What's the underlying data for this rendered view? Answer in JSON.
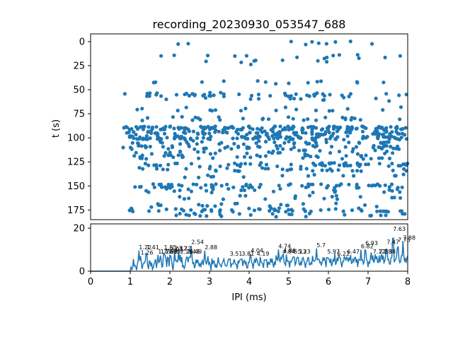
{
  "chart_data": [
    {
      "type": "scatter",
      "title": "recording_20230930_053547_688",
      "xlabel": "",
      "ylabel": "t (s)",
      "xlim": [
        0,
        8
      ],
      "ylim": [
        185,
        -8
      ],
      "y_inverted": true,
      "yticks": [
        0,
        25,
        50,
        75,
        100,
        125,
        150,
        175
      ],
      "grid": false,
      "color": "#1f77b4",
      "bands": [
        {
          "t": 1,
          "count": 10,
          "x_from": 1.0,
          "x_to": 8.0
        },
        {
          "t": 15,
          "count": 10,
          "x_from": 1.0,
          "x_to": 8.0
        },
        {
          "t": 18,
          "count": 6,
          "x_from": 1.2,
          "x_to": 8.0
        },
        {
          "t": 22,
          "count": 6,
          "x_from": 1.2,
          "x_to": 8.0
        },
        {
          "t": 42,
          "count": 14,
          "x_from": 1.5,
          "x_to": 8.0
        },
        {
          "t": 55,
          "count": 48,
          "x_from": 0.8,
          "x_to": 8.0
        },
        {
          "t": 60,
          "count": 12,
          "x_from": 1.0,
          "x_to": 8.0
        },
        {
          "t": 70,
          "count": 18,
          "x_from": 1.0,
          "x_to": 8.0
        },
        {
          "t": 80,
          "count": 28,
          "x_from": 1.0,
          "x_to": 8.0
        },
        {
          "t": 90,
          "count": 130,
          "x_from": 0.8,
          "x_to": 8.0
        },
        {
          "t": 95,
          "count": 90,
          "x_from": 0.9,
          "x_to": 8.0
        },
        {
          "t": 100,
          "count": 110,
          "x_from": 0.9,
          "x_to": 8.0
        },
        {
          "t": 105,
          "count": 40,
          "x_from": 1.0,
          "x_to": 8.0
        },
        {
          "t": 110,
          "count": 55,
          "x_from": 0.8,
          "x_to": 8.0
        },
        {
          "t": 115,
          "count": 30,
          "x_from": 1.0,
          "x_to": 8.0
        },
        {
          "t": 120,
          "count": 40,
          "x_from": 1.0,
          "x_to": 8.0
        },
        {
          "t": 128,
          "count": 60,
          "x_from": 0.8,
          "x_to": 8.0
        },
        {
          "t": 133,
          "count": 35,
          "x_from": 1.2,
          "x_to": 8.0
        },
        {
          "t": 140,
          "count": 14,
          "x_from": 1.2,
          "x_to": 8.0
        },
        {
          "t": 150,
          "count": 70,
          "x_from": 0.8,
          "x_to": 8.0
        },
        {
          "t": 155,
          "count": 25,
          "x_from": 1.2,
          "x_to": 8.0
        },
        {
          "t": 162,
          "count": 18,
          "x_from": 1.5,
          "x_to": 8.0
        },
        {
          "t": 170,
          "count": 20,
          "x_from": 1.2,
          "x_to": 8.0
        },
        {
          "t": 175,
          "count": 55,
          "x_from": 0.9,
          "x_to": 8.0
        },
        {
          "t": 180,
          "count": 25,
          "x_from": 2.0,
          "x_to": 8.0
        }
      ]
    },
    {
      "type": "line",
      "title": "",
      "xlabel": "IPI (ms)",
      "ylabel": "",
      "xlim": [
        0,
        8
      ],
      "ylim": [
        0,
        22
      ],
      "xticks": [
        0,
        1,
        2,
        3,
        4,
        5,
        6,
        7,
        8
      ],
      "yticks": [
        0,
        20
      ],
      "grid": false,
      "color": "#1f77b4",
      "histogram": {
        "start": 0,
        "end": 8,
        "step": 0.02,
        "onset": 1.0
      },
      "peaks": [
        {
          "x": 1.22,
          "y": 9.5,
          "label": "1.22"
        },
        {
          "x": 1.26,
          "y": 7.0,
          "label": "1.26"
        },
        {
          "x": 1.41,
          "y": 9.5,
          "label": "1.41"
        },
        {
          "x": 1.7,
          "y": 7.5,
          "label": "1.7"
        },
        {
          "x": 1.76,
          "y": 7.5,
          "label": "1.76"
        },
        {
          "x": 1.85,
          "y": 9.5,
          "label": "1.85"
        },
        {
          "x": 1.88,
          "y": 7.5,
          "label": "1.88"
        },
        {
          "x": 1.95,
          "y": 7.5,
          "label": "1.95"
        },
        {
          "x": 2.01,
          "y": 8.5,
          "label": "2.01"
        },
        {
          "x": 2.12,
          "y": 9.0,
          "label": "2.12"
        },
        {
          "x": 2.22,
          "y": 9.0,
          "label": "2.22"
        },
        {
          "x": 2.26,
          "y": 7.5,
          "label": "2.26"
        },
        {
          "x": 2.43,
          "y": 7.5,
          "label": "2.43"
        },
        {
          "x": 2.49,
          "y": 7.5,
          "label": "2.49"
        },
        {
          "x": 2.54,
          "y": 12.0,
          "label": "2.54"
        },
        {
          "x": 2.88,
          "y": 9.5,
          "label": "2.88"
        },
        {
          "x": 3.51,
          "y": 6.5,
          "label": "3.51"
        },
        {
          "x": 3.81,
          "y": 6.5,
          "label": "3.81"
        },
        {
          "x": 4.04,
          "y": 8.0,
          "label": "4.04"
        },
        {
          "x": 4.19,
          "y": 6.5,
          "label": "4.19"
        },
        {
          "x": 4.74,
          "y": 10.0,
          "label": "4.74"
        },
        {
          "x": 4.84,
          "y": 7.5,
          "label": "4.84"
        },
        {
          "x": 4.86,
          "y": 8.0,
          "label": "4.86"
        },
        {
          "x": 5.13,
          "y": 7.5,
          "label": "5.13"
        },
        {
          "x": 5.23,
          "y": 7.5,
          "label": "5.23"
        },
        {
          "x": 5.7,
          "y": 10.5,
          "label": "5.7"
        },
        {
          "x": 5.97,
          "y": 7.5,
          "label": "5.97"
        },
        {
          "x": 6.22,
          "y": 6.5,
          "label": "6.22"
        },
        {
          "x": 6.47,
          "y": 7.5,
          "label": "6.47"
        },
        {
          "x": 6.82,
          "y": 10.0,
          "label": "6.82"
        },
        {
          "x": 6.93,
          "y": 11.5,
          "label": "6.93"
        },
        {
          "x": 7.12,
          "y": 7.5,
          "label": "7.12"
        },
        {
          "x": 7.28,
          "y": 7.5,
          "label": "7.28"
        },
        {
          "x": 7.38,
          "y": 7.5,
          "label": "7.38"
        },
        {
          "x": 7.47,
          "y": 12.0,
          "label": "7.47"
        },
        {
          "x": 7.63,
          "y": 18.0,
          "label": "7.63"
        },
        {
          "x": 7.75,
          "y": 13.0,
          "label": "7.75"
        },
        {
          "x": 7.88,
          "y": 14.0,
          "label": "7.88"
        }
      ]
    }
  ]
}
